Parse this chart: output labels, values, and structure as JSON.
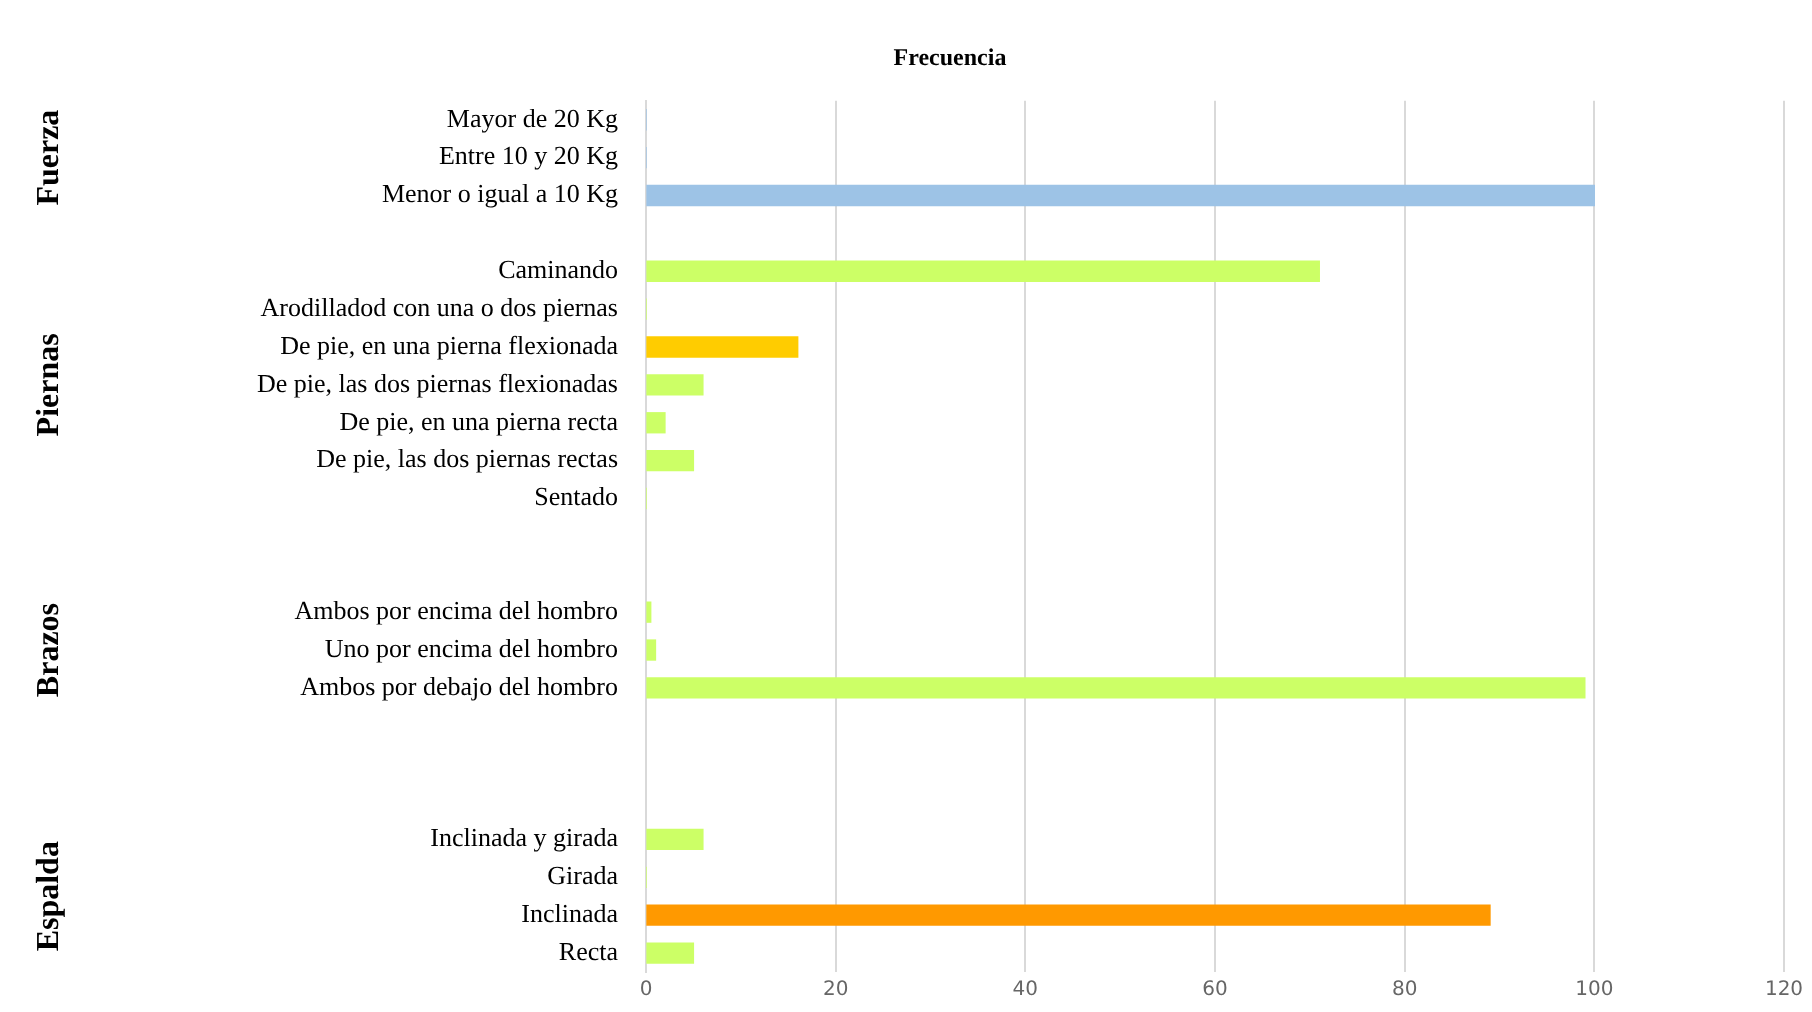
{
  "chart_data": {
    "type": "bar",
    "orientation": "horizontal",
    "title": "Frecuencia",
    "categories": [
      "Mayor de 20 Kg",
      "Entre 10 y 20 Kg",
      "Menor o igual a 10 Kg",
      null,
      "Caminando",
      "Arodilladod con una o dos piernas",
      "De pie, en una pierna flexionada",
      "De pie, las dos piernas flexionadas",
      "De pie, en una pierna recta",
      "De pie, las dos piernas rectas",
      "Sentado",
      null,
      null,
      "Ambos por encima del hombro",
      "Uno por encima del hombro",
      "Ambos por debajo del hombro",
      null,
      null,
      null,
      "Inclinada y girada",
      "Girada",
      "Inclinada",
      "Recta"
    ],
    "values": [
      0,
      0,
      100,
      null,
      71,
      0,
      16,
      6,
      2,
      5,
      0,
      null,
      null,
      0.5,
      1,
      99,
      null,
      null,
      null,
      6,
      0,
      89,
      5
    ],
    "colors": [
      "#9dc3e6",
      "#9dc3e6",
      "#9dc3e6",
      null,
      "#ccff66",
      "#ccff66",
      "#ffcc00",
      "#ccff66",
      "#ccff66",
      "#ccff66",
      "#ccff66",
      null,
      null,
      "#ccff66",
      "#ccff66",
      "#ccff66",
      null,
      null,
      null,
      "#ccff66",
      "#ccff66",
      "#ff9900",
      "#ccff66"
    ],
    "xlim": [
      0,
      120
    ],
    "xticks": [
      0,
      20,
      40,
      60,
      80,
      100,
      120
    ],
    "grid": "x",
    "annotations": [
      "Fuerza",
      "Piernas",
      "Brazos",
      "Espalda"
    ]
  }
}
